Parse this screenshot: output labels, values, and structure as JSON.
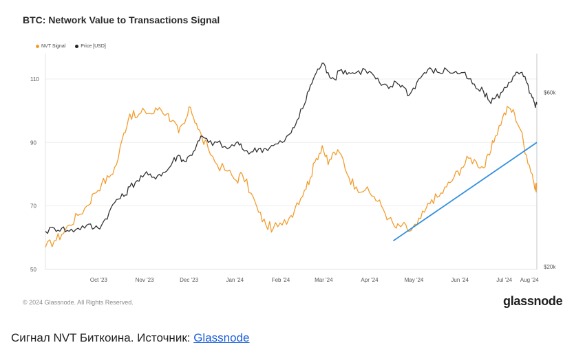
{
  "chart": {
    "title": "BTC: Network Value to Transactions Signal",
    "copyright": "© 2024 Glassnode. All Rights Reserved.",
    "brand": "glassnode"
  },
  "caption": {
    "text": "Сигнал NVT Биткоина. Источник: ",
    "link_label": "Glassnode"
  },
  "chart_data": {
    "type": "line",
    "title": "BTC: Network Value to Transactions Signal",
    "xlabel": "",
    "ylabel": "",
    "x_ticks": [
      "Oct '23",
      "Nov '23",
      "Dec '23",
      "Jan '24",
      "Feb '24",
      "Mar '24",
      "Apr '24",
      "May '24",
      "Jun '24",
      "Jul '24",
      "Aug '24"
    ],
    "y_left": {
      "ticks": [
        50,
        70,
        90,
        110
      ],
      "range": [
        50,
        118
      ]
    },
    "y_right": {
      "ticks": [
        "$20k",
        "$60k"
      ],
      "scale": "log"
    },
    "legend": {
      "placement": "top-left",
      "entries": [
        "NVT Signal",
        "Price [USD]"
      ]
    },
    "grid": true,
    "x_range": [
      "2023-09-09",
      "2024-08-06"
    ],
    "series": [
      {
        "name": "NVT Signal",
        "color": "#f39c2c",
        "axis": "left",
        "points": [
          [
            "2023-09-09",
            57
          ],
          [
            "2023-09-15",
            59
          ],
          [
            "2023-09-20",
            61
          ],
          [
            "2023-09-25",
            64
          ],
          [
            "2023-10-01",
            67
          ],
          [
            "2023-10-07",
            70
          ],
          [
            "2023-10-12",
            74
          ],
          [
            "2023-10-17",
            77
          ],
          [
            "2023-10-22",
            79
          ],
          [
            "2023-10-27",
            83
          ],
          [
            "2023-11-01",
            93
          ],
          [
            "2023-11-05",
            99
          ],
          [
            "2023-11-10",
            98
          ],
          [
            "2023-11-15",
            100
          ],
          [
            "2023-11-20",
            99
          ],
          [
            "2023-11-25",
            101
          ],
          [
            "2023-11-30",
            99
          ],
          [
            "2023-12-04",
            97
          ],
          [
            "2023-12-08",
            93
          ],
          [
            "2023-12-12",
            96
          ],
          [
            "2023-12-16",
            101
          ],
          [
            "2023-12-20",
            96
          ],
          [
            "2023-12-24",
            91
          ],
          [
            "2023-12-28",
            88
          ],
          [
            "2024-01-03",
            83
          ],
          [
            "2024-01-10",
            81
          ],
          [
            "2024-01-16",
            78
          ],
          [
            "2024-01-20",
            80
          ],
          [
            "2024-01-26",
            74
          ],
          [
            "2024-01-31",
            68
          ],
          [
            "2024-02-05",
            64
          ],
          [
            "2024-02-10",
            63
          ],
          [
            "2024-02-16",
            64
          ],
          [
            "2024-02-22",
            67
          ],
          [
            "2024-02-26",
            71
          ],
          [
            "2024-03-02",
            75
          ],
          [
            "2024-03-06",
            79
          ],
          [
            "2024-03-10",
            85
          ],
          [
            "2024-03-14",
            89
          ],
          [
            "2024-03-18",
            83
          ],
          [
            "2024-03-22",
            87
          ],
          [
            "2024-03-27",
            86
          ],
          [
            "2024-04-01",
            79
          ],
          [
            "2024-04-06",
            76
          ],
          [
            "2024-04-12",
            75
          ],
          [
            "2024-04-18",
            73
          ],
          [
            "2024-04-23",
            70
          ],
          [
            "2024-04-28",
            66
          ],
          [
            "2024-05-03",
            63
          ],
          [
            "2024-05-07",
            64
          ],
          [
            "2024-05-12",
            62
          ],
          [
            "2024-05-17",
            64
          ],
          [
            "2024-05-22",
            68
          ],
          [
            "2024-05-27",
            72
          ],
          [
            "2024-06-01",
            73
          ],
          [
            "2024-06-06",
            76
          ],
          [
            "2024-06-11",
            79
          ],
          [
            "2024-06-16",
            82
          ],
          [
            "2024-06-21",
            85
          ],
          [
            "2024-06-26",
            84
          ],
          [
            "2024-07-01",
            82
          ],
          [
            "2024-07-05",
            86
          ],
          [
            "2024-07-09",
            92
          ],
          [
            "2024-07-14",
            98
          ],
          [
            "2024-07-18",
            101
          ],
          [
            "2024-07-22",
            99
          ],
          [
            "2024-07-26",
            94
          ],
          [
            "2024-07-30",
            86
          ],
          [
            "2024-08-03",
            80
          ],
          [
            "2024-08-05",
            75
          ],
          [
            "2024-08-06",
            77
          ]
        ]
      },
      {
        "name": "Price [USD]",
        "color": "#333333",
        "axis": "left",
        "points": [
          [
            "2023-09-09",
            62
          ],
          [
            "2023-09-15",
            63
          ],
          [
            "2023-09-20",
            63
          ],
          [
            "2023-09-25",
            62
          ],
          [
            "2023-10-01",
            63
          ],
          [
            "2023-10-07",
            64
          ],
          [
            "2023-10-12",
            63
          ],
          [
            "2023-10-17",
            64
          ],
          [
            "2023-10-22",
            68
          ],
          [
            "2023-10-27",
            72
          ],
          [
            "2023-11-01",
            73
          ],
          [
            "2023-11-05",
            76
          ],
          [
            "2023-11-10",
            78
          ],
          [
            "2023-11-15",
            80
          ],
          [
            "2023-11-20",
            79
          ],
          [
            "2023-11-25",
            80
          ],
          [
            "2023-11-30",
            81
          ],
          [
            "2023-12-04",
            84
          ],
          [
            "2023-12-08",
            86
          ],
          [
            "2023-12-12",
            84
          ],
          [
            "2023-12-16",
            86
          ],
          [
            "2023-12-20",
            89
          ],
          [
            "2023-12-24",
            92
          ],
          [
            "2023-12-28",
            90
          ],
          [
            "2024-01-03",
            90
          ],
          [
            "2024-01-10",
            88
          ],
          [
            "2024-01-16",
            90
          ],
          [
            "2024-01-20",
            88
          ],
          [
            "2024-01-26",
            87
          ],
          [
            "2024-01-31",
            88
          ],
          [
            "2024-02-05",
            88
          ],
          [
            "2024-02-10",
            89
          ],
          [
            "2024-02-16",
            90
          ],
          [
            "2024-02-22",
            93
          ],
          [
            "2024-02-26",
            97
          ],
          [
            "2024-03-02",
            102
          ],
          [
            "2024-03-06",
            108
          ],
          [
            "2024-03-10",
            112
          ],
          [
            "2024-03-14",
            115
          ],
          [
            "2024-03-18",
            112
          ],
          [
            "2024-03-22",
            110
          ],
          [
            "2024-03-27",
            113
          ],
          [
            "2024-04-01",
            112
          ],
          [
            "2024-04-06",
            112
          ],
          [
            "2024-04-12",
            113
          ],
          [
            "2024-04-18",
            111
          ],
          [
            "2024-04-23",
            108
          ],
          [
            "2024-04-28",
            107
          ],
          [
            "2024-05-03",
            109
          ],
          [
            "2024-05-07",
            108
          ],
          [
            "2024-05-12",
            105
          ],
          [
            "2024-05-17",
            109
          ],
          [
            "2024-05-22",
            112
          ],
          [
            "2024-05-27",
            113
          ],
          [
            "2024-06-01",
            112
          ],
          [
            "2024-06-06",
            113
          ],
          [
            "2024-06-11",
            112
          ],
          [
            "2024-06-16",
            112
          ],
          [
            "2024-06-21",
            110
          ],
          [
            "2024-06-26",
            107
          ],
          [
            "2024-07-01",
            106
          ],
          [
            "2024-07-05",
            103
          ],
          [
            "2024-07-09",
            104
          ],
          [
            "2024-07-14",
            106
          ],
          [
            "2024-07-18",
            109
          ],
          [
            "2024-07-22",
            111
          ],
          [
            "2024-07-26",
            112
          ],
          [
            "2024-07-30",
            109
          ],
          [
            "2024-08-03",
            104
          ],
          [
            "2024-08-05",
            101
          ],
          [
            "2024-08-06",
            102
          ]
        ]
      }
    ],
    "annotations": [
      {
        "type": "trendline",
        "color": "#2f8ee0",
        "from": [
          "2024-05-01",
          59
        ],
        "to": [
          "2024-08-06",
          90
        ]
      }
    ]
  }
}
